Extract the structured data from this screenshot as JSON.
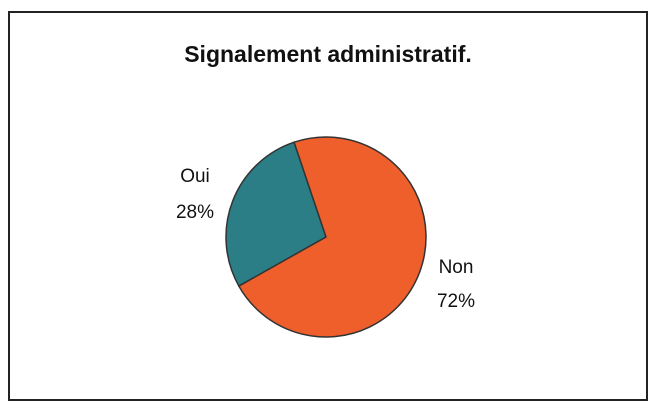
{
  "chart_data": {
    "type": "pie",
    "title": "Signalement administratif.",
    "categories": [
      "Oui",
      "Non"
    ],
    "values": [
      28,
      72
    ],
    "value_labels": [
      "28%",
      "72%"
    ],
    "colors": [
      "#2b7e86",
      "#ee5f2c"
    ]
  }
}
